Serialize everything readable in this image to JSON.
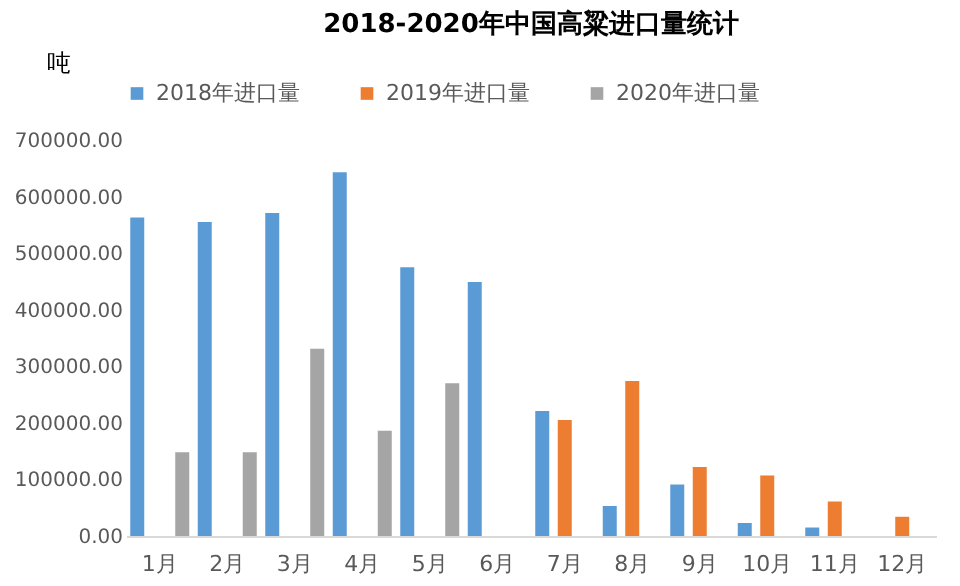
{
  "chart_data": {
    "type": "bar",
    "title": "2018-2020年中国高粱进口量统计",
    "ylabel": "吨",
    "categories": [
      "1月",
      "2月",
      "3月",
      "4月",
      "5月",
      "6月",
      "7月",
      "8月",
      "9月",
      "10月",
      "11月",
      "12月"
    ],
    "series": [
      {
        "name": "2018年进口量",
        "color": "#5b9bd5",
        "values": [
          563000,
          555000,
          571000,
          643000,
          475000,
          449000,
          221000,
          53000,
          91000,
          23000,
          15000,
          null
        ]
      },
      {
        "name": "2019年进口量",
        "color": "#ed7d31",
        "values": [
          null,
          null,
          null,
          null,
          null,
          null,
          205000,
          274000,
          122000,
          107000,
          61000,
          34000
        ]
      },
      {
        "name": "2020年进口量",
        "color": "#a5a5a5",
        "values": [
          148000,
          148000,
          331000,
          186000,
          270000,
          null,
          null,
          null,
          null,
          null,
          null,
          null
        ]
      }
    ],
    "ylim": [
      0,
      700000
    ],
    "yticks": [
      {
        "value": 0,
        "label": "0.00"
      },
      {
        "value": 100000,
        "label": "100000.00"
      },
      {
        "value": 200000,
        "label": "200000.00"
      },
      {
        "value": 300000,
        "label": "300000.00"
      },
      {
        "value": 400000,
        "label": "400000.00"
      },
      {
        "value": 500000,
        "label": "500000.00"
      },
      {
        "value": 600000,
        "label": "600000.00"
      },
      {
        "value": 700000,
        "label": "700000.00"
      }
    ],
    "grid": false,
    "legend": "top"
  }
}
